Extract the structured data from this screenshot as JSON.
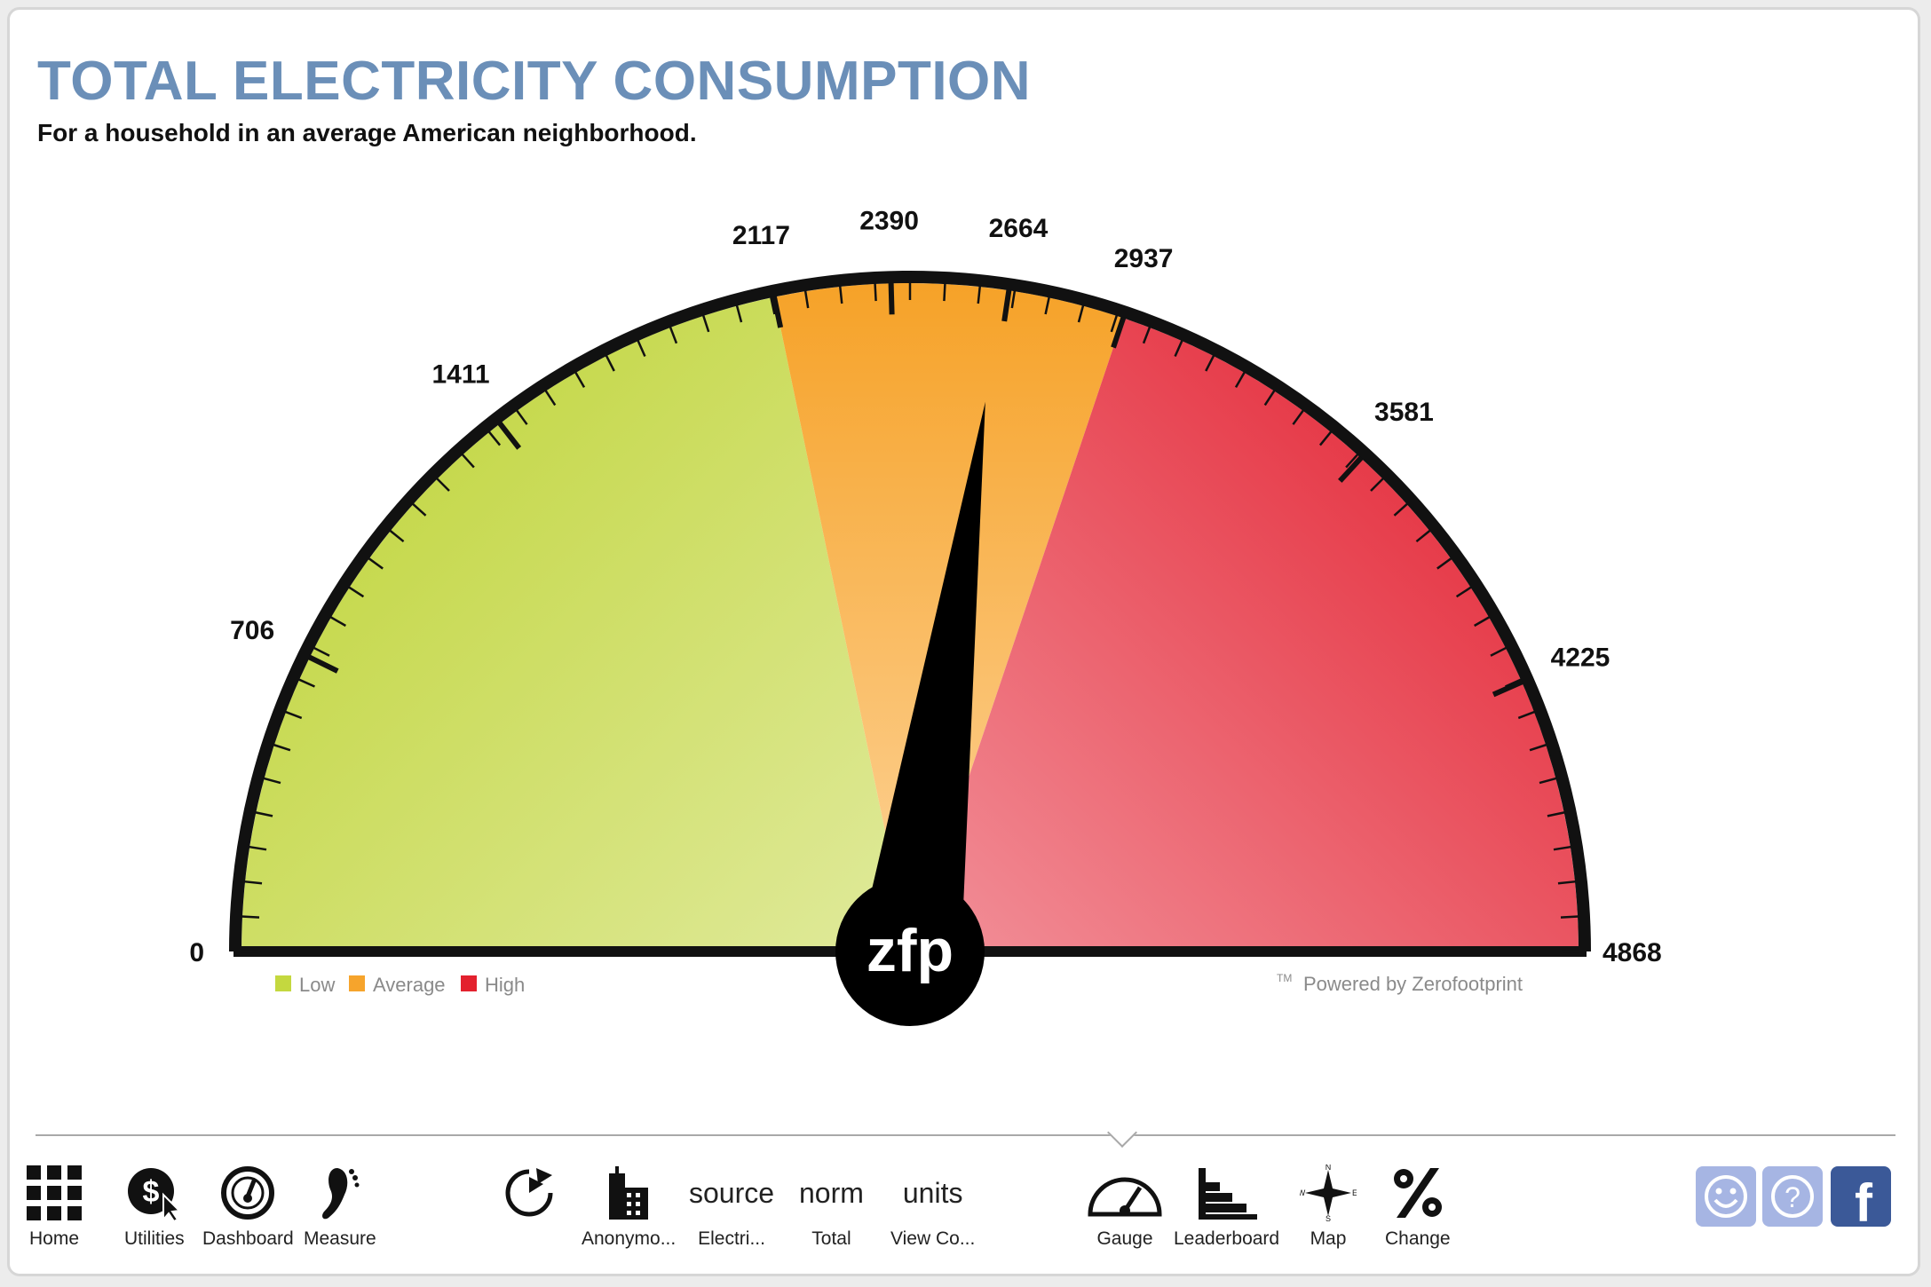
{
  "header": {
    "title": "TOTAL ELECTRICITY CONSUMPTION",
    "subtitle": "For a household in an average American neighborhood."
  },
  "gauge": {
    "min": 0,
    "max": 4868,
    "needle_value": 2645,
    "tick_labels": [
      "0",
      "706",
      "1411",
      "2117",
      "2390",
      "2664",
      "2937",
      "3581",
      "4225",
      "4868"
    ],
    "tick_values": [
      0,
      706,
      1411,
      2117,
      2390,
      2664,
      2937,
      3581,
      4225,
      4868
    ],
    "zones": [
      {
        "name": "Low",
        "from": 0,
        "to": 2117,
        "color": "#c4d83f"
      },
      {
        "name": "Average",
        "from": 2117,
        "to": 2937,
        "color": "#f6a42c"
      },
      {
        "name": "High",
        "from": 2937,
        "to": 4868,
        "color": "#e3212e"
      }
    ],
    "hub_text": "zfp",
    "legend": [
      {
        "label": "Low",
        "color": "#c4d83f"
      },
      {
        "label": "Average",
        "color": "#f6a42c"
      },
      {
        "label": "High",
        "color": "#e3212e"
      }
    ],
    "trademark": "TM",
    "powered_by": "Powered by Zerofootprint"
  },
  "toolbar": {
    "home": {
      "label": "Home",
      "icon": "grid-icon"
    },
    "utilities": {
      "label": "Utilities",
      "icon": "dollar-cursor-icon"
    },
    "dashboard": {
      "label": "Dashboard",
      "icon": "speedometer-icon"
    },
    "measure": {
      "label": "Measure",
      "icon": "footprint-icon"
    },
    "chart_type": {
      "icon": "pie-refresh-icon"
    },
    "anonymous": {
      "label": "Anonymo...",
      "icon": "building-icon"
    },
    "source": {
      "word": "source",
      "label": "Electri..."
    },
    "norm": {
      "word": "norm",
      "label": "Total"
    },
    "units": {
      "word": "units",
      "label": "View Co..."
    },
    "gauge": {
      "label": "Gauge",
      "icon": "gauge-icon"
    },
    "leaderboard": {
      "label": "Leaderboard",
      "icon": "leaderboard-icon"
    },
    "map": {
      "label": "Map",
      "icon": "compass-icon"
    },
    "change": {
      "label": "Change",
      "icon": "percent-icon"
    },
    "smiley": {
      "icon": "smiley-icon"
    },
    "help": {
      "icon": "question-icon"
    },
    "facebook": {
      "icon": "facebook-icon",
      "letter": "f"
    }
  }
}
